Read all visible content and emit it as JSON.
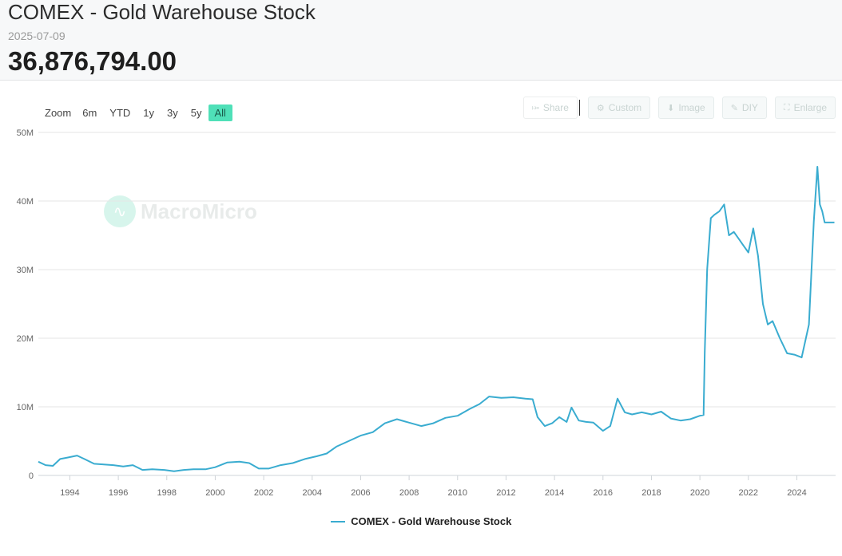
{
  "header": {
    "title": "COMEX - Gold Warehouse Stock",
    "date": "2025-07-09",
    "value": "36,876,794.00"
  },
  "range_selector": {
    "zoom_label": "Zoom",
    "buttons": [
      "6m",
      "YTD",
      "1y",
      "3y",
      "5y",
      "All"
    ],
    "active": "All"
  },
  "toolbar": {
    "share": "Share",
    "custom": "Custom",
    "image": "Image",
    "diy": "DIY",
    "enlarge": "Enlarge"
  },
  "watermark": "MacroMicro",
  "colors": {
    "series": "#3aacd0",
    "active_button": "#4fe0b8"
  },
  "chart_data": {
    "type": "line",
    "title": "",
    "xlabel": "",
    "ylabel": "",
    "x_ticks": [
      "1994",
      "1996",
      "1998",
      "2000",
      "2002",
      "2004",
      "2006",
      "2008",
      "2010",
      "2012",
      "2014",
      "2016",
      "2018",
      "2020",
      "2022",
      "2024"
    ],
    "y_ticks": [
      "0",
      "10M",
      "20M",
      "30M",
      "40M",
      "50M"
    ],
    "xlim": [
      1992.7,
      2025.6
    ],
    "ylim": [
      0,
      50000000
    ],
    "grid": true,
    "legend": "bottom-center",
    "series": [
      {
        "name": "COMEX - Gold Warehouse Stock",
        "x": [
          1992.7,
          1993.0,
          1993.3,
          1993.6,
          1993.9,
          1994.3,
          1994.6,
          1995.0,
          1995.4,
          1995.8,
          1996.2,
          1996.6,
          1997.0,
          1997.4,
          1997.9,
          1998.3,
          1998.7,
          1999.1,
          1999.6,
          2000.0,
          2000.5,
          2001.0,
          2001.4,
          2001.8,
          2002.2,
          2002.7,
          2003.2,
          2003.7,
          2004.2,
          2004.6,
          2005.0,
          2005.5,
          2006.0,
          2006.5,
          2007.0,
          2007.5,
          2008.0,
          2008.5,
          2009.0,
          2009.5,
          2010.0,
          2010.5,
          2010.9,
          2011.3,
          2011.8,
          2012.3,
          2012.8,
          2013.1,
          2013.3,
          2013.6,
          2013.9,
          2014.2,
          2014.5,
          2014.7,
          2015.0,
          2015.3,
          2015.6,
          2016.0,
          2016.3,
          2016.6,
          2016.9,
          2017.2,
          2017.6,
          2018.0,
          2018.4,
          2018.8,
          2019.2,
          2019.6,
          2020.0,
          2020.15,
          2020.2,
          2020.3,
          2020.45,
          2020.6,
          2020.8,
          2021.0,
          2021.2,
          2021.4,
          2021.6,
          2021.8,
          2022.0,
          2022.2,
          2022.4,
          2022.6,
          2022.8,
          2023.0,
          2023.3,
          2023.6,
          2023.9,
          2024.2,
          2024.5,
          2024.7,
          2024.85,
          2024.95,
          2025.05,
          2025.15,
          2025.25,
          2025.35,
          2025.45,
          2025.55
        ],
        "y": [
          2000000,
          1500000,
          1400000,
          2400000,
          2600000,
          2900000,
          2400000,
          1700000,
          1600000,
          1500000,
          1300000,
          1500000,
          800000,
          900000,
          800000,
          600000,
          800000,
          900000,
          900000,
          1200000,
          1900000,
          2000000,
          1800000,
          1000000,
          1000000,
          1500000,
          1800000,
          2400000,
          2800000,
          3200000,
          4200000,
          5000000,
          5800000,
          6300000,
          7600000,
          8200000,
          7700000,
          7200000,
          7600000,
          8400000,
          8700000,
          9700000,
          10400000,
          11500000,
          11300000,
          11400000,
          11200000,
          11100000,
          8500000,
          7200000,
          7600000,
          8500000,
          7800000,
          9900000,
          8000000,
          7800000,
          7700000,
          6500000,
          7200000,
          11200000,
          9200000,
          8900000,
          9200000,
          8900000,
          9300000,
          8300000,
          8000000,
          8200000,
          8700000,
          8800000,
          18000000,
          30000000,
          37500000,
          38000000,
          38500000,
          39500000,
          35000000,
          35500000,
          34500000,
          33500000,
          32500000,
          36000000,
          32000000,
          25000000,
          22000000,
          22500000,
          20000000,
          17800000,
          17600000,
          17200000,
          22000000,
          37000000,
          45000000,
          39500000,
          38500000,
          36876794,
          36876794,
          36876794,
          36876794,
          36876794
        ]
      }
    ]
  }
}
